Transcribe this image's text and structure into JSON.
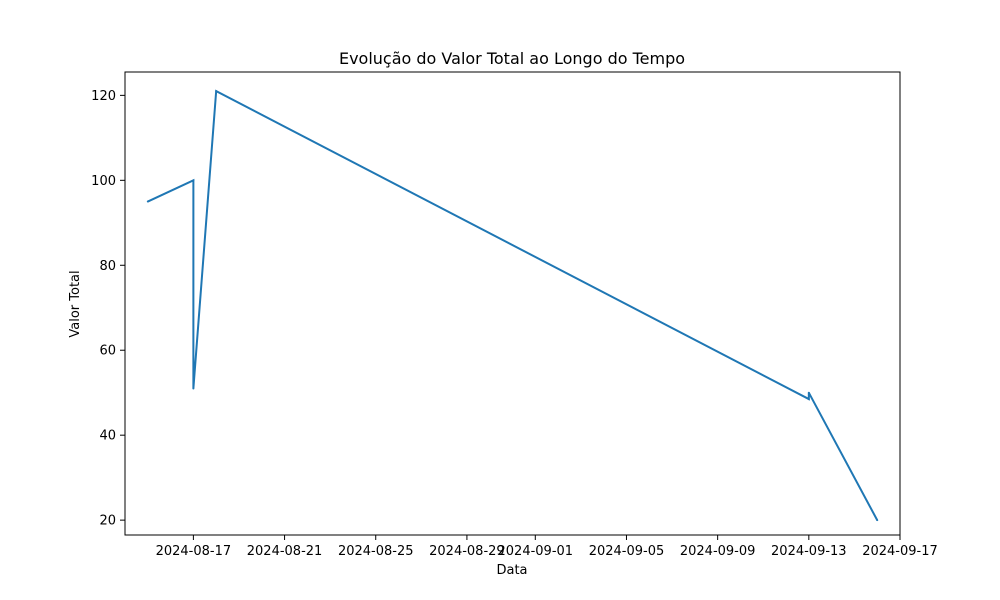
{
  "chart_data": {
    "type": "line",
    "title": "Evolução do Valor Total ao Longo do Tempo",
    "xlabel": "Data",
    "ylabel": "Valor Total",
    "x_scale": "date",
    "xlim": [
      "2024-08-14",
      "2024-09-17"
    ],
    "ylim": [
      16.5,
      125.5
    ],
    "grid": false,
    "x_ticks": [
      "2024-08-17",
      "2024-08-21",
      "2024-08-25",
      "2024-08-29",
      "2024-09-01",
      "2024-09-05",
      "2024-09-09",
      "2024-09-13",
      "2024-09-17"
    ],
    "y_ticks": [
      20,
      40,
      60,
      80,
      100,
      120
    ],
    "series": [
      {
        "color": "#1f77b4",
        "points": [
          {
            "x": "2024-08-15",
            "y": 95
          },
          {
            "x": "2024-08-17",
            "y": 100
          },
          {
            "x": "2024-08-17",
            "y": 51
          },
          {
            "x": "2024-08-18",
            "y": 121
          },
          {
            "x": "2024-09-13",
            "y": 48.5
          },
          {
            "x": "2024-09-13",
            "y": 50
          },
          {
            "x": "2024-09-16",
            "y": 20
          }
        ]
      }
    ]
  }
}
